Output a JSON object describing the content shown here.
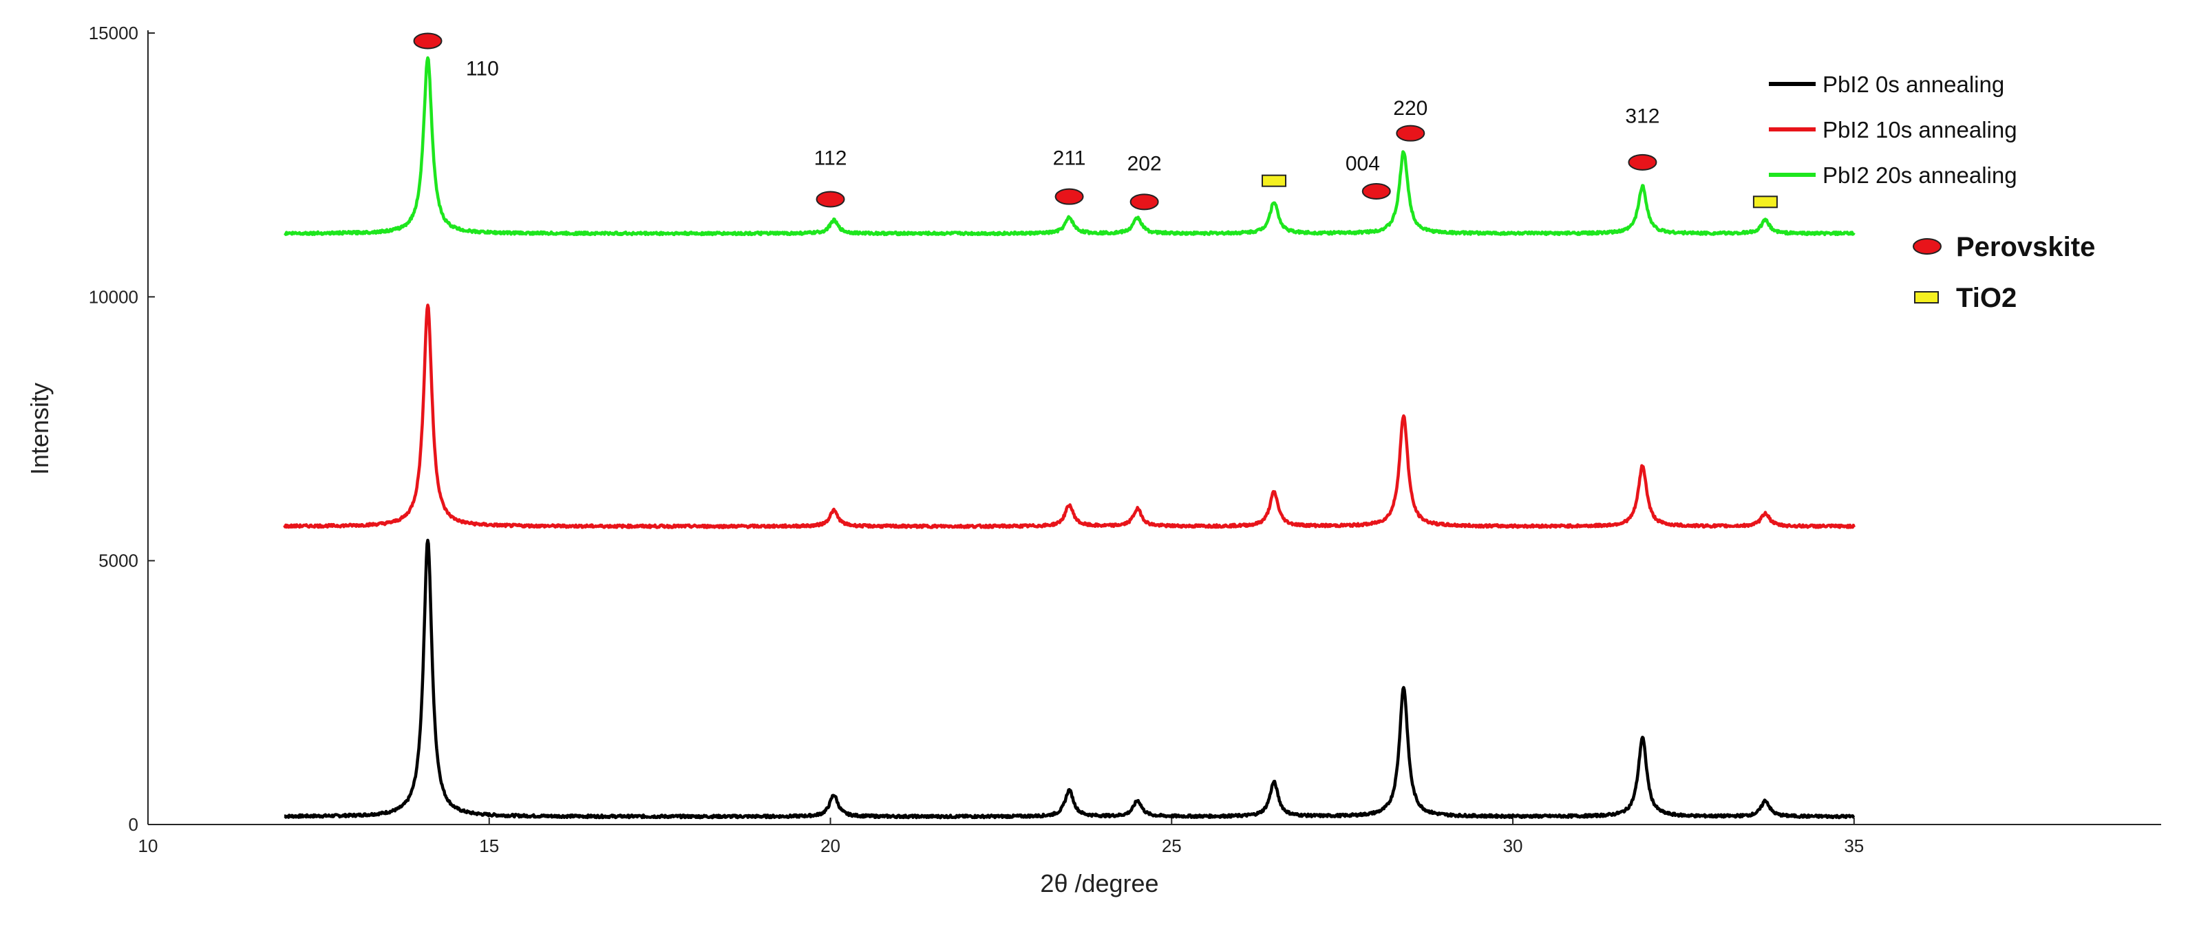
{
  "chart_data": {
    "type": "line",
    "xlabel": "2θ /degree",
    "ylabel": "Intensity",
    "xlim": [
      10,
      39.5
    ],
    "ylim": [
      0,
      15000
    ],
    "x_ticks": [
      10,
      15,
      20,
      25,
      30,
      35
    ],
    "y_ticks": [
      0,
      5000,
      10000,
      15000
    ],
    "grid": false,
    "legend_position": "top-right",
    "series": [
      {
        "name": "PbI2  0s  annealing",
        "color": "#000000",
        "baseline": 150,
        "x_range": [
          12,
          35
        ],
        "peaks": [
          {
            "x": 14.1,
            "intensity": 5400
          },
          {
            "x": 20.05,
            "intensity": 560
          },
          {
            "x": 23.5,
            "intensity": 650
          },
          {
            "x": 24.5,
            "intensity": 450
          },
          {
            "x": 26.5,
            "intensity": 800
          },
          {
            "x": 28.4,
            "intensity": 2600
          },
          {
            "x": 31.9,
            "intensity": 1650
          },
          {
            "x": 33.7,
            "intensity": 450
          }
        ]
      },
      {
        "name": "PbI2  10s  annealing",
        "color": "#e8141a",
        "baseline": 5650,
        "x_range": [
          12,
          35
        ],
        "peaks": [
          {
            "x": 14.1,
            "intensity": 9850
          },
          {
            "x": 20.05,
            "intensity": 5950
          },
          {
            "x": 23.5,
            "intensity": 6050
          },
          {
            "x": 24.5,
            "intensity": 5980
          },
          {
            "x": 26.5,
            "intensity": 6300
          },
          {
            "x": 28.4,
            "intensity": 7750
          },
          {
            "x": 31.9,
            "intensity": 6800
          },
          {
            "x": 33.7,
            "intensity": 5900
          }
        ]
      },
      {
        "name": "PbI2  20s  annealing",
        "color": "#1ee61e",
        "baseline": 11200,
        "x_range": [
          12,
          35
        ],
        "peaks": [
          {
            "x": 14.1,
            "intensity": 14550
          },
          {
            "x": 20.05,
            "intensity": 11450
          },
          {
            "x": 23.5,
            "intensity": 11500
          },
          {
            "x": 24.5,
            "intensity": 11500
          },
          {
            "x": 26.5,
            "intensity": 11800
          },
          {
            "x": 28.4,
            "intensity": 12750
          },
          {
            "x": 31.9,
            "intensity": 12100
          },
          {
            "x": 33.7,
            "intensity": 11450
          }
        ]
      }
    ],
    "peak_annotations": [
      {
        "label": "110",
        "x": 14.9,
        "y": 14200
      },
      {
        "label": "112",
        "x": 20.0,
        "y": 12500
      },
      {
        "label": "211",
        "x": 23.5,
        "y": 12500
      },
      {
        "label": "202",
        "x": 24.6,
        "y": 12400
      },
      {
        "label": "004",
        "x": 27.8,
        "y": 12400
      },
      {
        "label": "220",
        "x": 28.5,
        "y": 13450
      },
      {
        "label": "312",
        "x": 31.9,
        "y": 13300
      }
    ],
    "phase_markers": [
      {
        "phase": "Perovskite",
        "x": 14.1,
        "y": 14850
      },
      {
        "phase": "Perovskite",
        "x": 20.0,
        "y": 11850
      },
      {
        "phase": "Perovskite",
        "x": 23.5,
        "y": 11900
      },
      {
        "phase": "Perovskite",
        "x": 24.6,
        "y": 11800
      },
      {
        "phase": "Perovskite",
        "x": 28.0,
        "y": 12000
      },
      {
        "phase": "Perovskite",
        "x": 28.5,
        "y": 13100
      },
      {
        "phase": "Perovskite",
        "x": 31.9,
        "y": 12550
      },
      {
        "phase": "TiO2",
        "x": 26.5,
        "y": 12200
      },
      {
        "phase": "TiO2",
        "x": 33.7,
        "y": 11800
      }
    ],
    "phase_legend": [
      {
        "phase": "Perovskite",
        "label": "Perovskite",
        "color": "#e8141a"
      },
      {
        "phase": "TiO2",
        "label": "TiO2",
        "color": "#f5f020"
      }
    ]
  }
}
